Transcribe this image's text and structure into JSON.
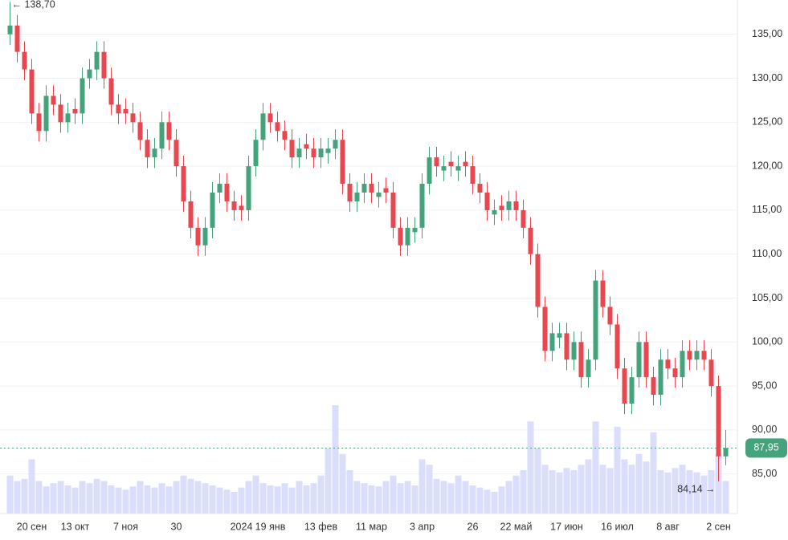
{
  "chart_data": {
    "type": "candlestick",
    "up_color": "#45a37c",
    "down_color": "#e8474f",
    "volume_color": "#dadefb",
    "ylim": [
      80.5,
      138.9
    ],
    "yticks": [
      {
        "value": 85,
        "label": "85,00"
      },
      {
        "value": 90,
        "label": "90,00"
      },
      {
        "value": 95,
        "label": "95,00"
      },
      {
        "value": 100,
        "label": "100,00"
      },
      {
        "value": 105,
        "label": "105,00"
      },
      {
        "value": 110,
        "label": "110,00"
      },
      {
        "value": 115,
        "label": "115,00"
      },
      {
        "value": 120,
        "label": "120,00"
      },
      {
        "value": 125,
        "label": "125,00"
      },
      {
        "value": 130,
        "label": "130,00"
      },
      {
        "value": 135,
        "label": "135,00"
      }
    ],
    "grid": true,
    "last_price": {
      "value": 87.95,
      "label": "87,95"
    },
    "high_marker": {
      "value": 138.7,
      "label": "← 138,70"
    },
    "low_marker": {
      "value": 84.14,
      "label": "84,14 →"
    },
    "categories": [
      null,
      null,
      null,
      "20 сен",
      null,
      null,
      null,
      null,
      null,
      "13 окт",
      null,
      null,
      null,
      null,
      null,
      null,
      "7 ноя",
      null,
      null,
      null,
      null,
      null,
      null,
      "30",
      null,
      null,
      null,
      null,
      null,
      null,
      null,
      null,
      "2024",
      null,
      null,
      null,
      "19 янв",
      null,
      null,
      null,
      null,
      null,
      null,
      "13 фев",
      null,
      null,
      null,
      null,
      null,
      null,
      "11 мар",
      null,
      null,
      null,
      null,
      null,
      null,
      "3 апр",
      null,
      null,
      null,
      null,
      null,
      null,
      "26",
      null,
      null,
      null,
      null,
      null,
      "22 май",
      null,
      null,
      null,
      null,
      null,
      null,
      "17 июн",
      null,
      null,
      null,
      null,
      null,
      null,
      "16 июл",
      null,
      null,
      null,
      null,
      null,
      null,
      "8 авг",
      null,
      null,
      null,
      null,
      null,
      null,
      "2 сен",
      null
    ],
    "open": [
      135,
      136,
      133,
      131,
      126,
      124,
      128,
      127,
      125,
      126.5,
      126,
      130,
      131,
      133,
      130,
      127,
      126.5,
      126,
      125,
      123,
      121,
      122,
      125,
      123,
      120,
      116,
      113,
      111,
      113,
      117,
      118,
      116,
      115.5,
      115,
      120,
      123,
      126,
      125,
      124,
      123,
      121,
      122.5,
      122,
      121,
      121.5,
      122,
      123,
      118,
      116,
      117,
      118,
      116.5,
      117.5,
      117,
      113,
      111,
      112.5,
      113,
      118,
      121,
      119.5,
      120.5,
      119.5,
      120.5,
      120,
      118,
      117,
      114.5,
      115.5,
      115,
      116,
      115,
      113,
      110,
      104,
      99,
      100.5,
      101,
      98,
      100,
      96,
      98,
      107,
      104,
      102,
      97,
      93,
      96,
      100,
      96,
      94,
      98,
      97,
      96,
      99,
      98,
      99,
      98,
      95,
      87
    ],
    "high": [
      138.7,
      137.2,
      134.2,
      132.2,
      127.2,
      129.2,
      129.2,
      128.2,
      127.2,
      127.7,
      131.2,
      132.2,
      134.2,
      134.2,
      131.2,
      128.2,
      127.7,
      127.2,
      126.2,
      124.2,
      123.2,
      126.2,
      126.2,
      124.2,
      121.2,
      117.2,
      114.2,
      114.2,
      118.2,
      119.2,
      119.2,
      117.2,
      116.7,
      121.2,
      124.2,
      127.2,
      127.2,
      126.2,
      125.2,
      124.2,
      123.2,
      123.7,
      123.2,
      123.2,
      123.2,
      124.2,
      124.2,
      119.2,
      118.2,
      119.2,
      119.2,
      118.2,
      118.7,
      118.2,
      114.2,
      114.2,
      114.2,
      119.2,
      122.2,
      122.2,
      121.2,
      121.7,
      121.2,
      121.7,
      121.2,
      119.2,
      118.2,
      116.2,
      116.7,
      117.2,
      117.2,
      116.2,
      114.2,
      111.2,
      105.2,
      102.2,
      102.2,
      102.2,
      101.2,
      101.2,
      99.2,
      108.2,
      108.2,
      105.2,
      103.2,
      98.2,
      97.2,
      101.2,
      101.2,
      97.2,
      99.2,
      99.2,
      98.2,
      100.2,
      100.2,
      100.2,
      100.2,
      99.2,
      96.2,
      90
    ],
    "low": [
      133.8,
      131.8,
      129.8,
      124.8,
      122.8,
      122.8,
      125.8,
      123.8,
      123.8,
      124.8,
      124.8,
      128.8,
      129.8,
      128.8,
      125.8,
      124.8,
      124.8,
      123.8,
      121.8,
      119.8,
      119.8,
      120.8,
      121.8,
      118.8,
      114.8,
      111.8,
      109.8,
      109.8,
      111.8,
      115.8,
      114.8,
      113.8,
      113.8,
      113.8,
      118.8,
      121.8,
      123.8,
      122.8,
      121.8,
      119.8,
      119.8,
      120.8,
      119.8,
      119.8,
      120.3,
      120.8,
      116.8,
      114.8,
      114.8,
      115.8,
      115.8,
      115.3,
      115.8,
      111.8,
      109.8,
      109.8,
      111.3,
      111.8,
      116.8,
      118.8,
      118.3,
      118.8,
      118.3,
      118.8,
      116.8,
      115.8,
      113.8,
      113.3,
      113.8,
      113.8,
      113.8,
      111.8,
      108.8,
      102.8,
      97.8,
      97.8,
      99.3,
      96.8,
      96.8,
      94.8,
      94.8,
      96.8,
      102.8,
      100.8,
      95.8,
      91.8,
      91.8,
      94.8,
      94.8,
      92.8,
      92.8,
      95.8,
      94.8,
      94.8,
      96.8,
      96.8,
      96.8,
      93.8,
      84.14,
      86
    ],
    "close": [
      136,
      133,
      131,
      126,
      124,
      128,
      127,
      125,
      126,
      126,
      130,
      131,
      133,
      130,
      127,
      126,
      126,
      125,
      123,
      121,
      122,
      125,
      123,
      120,
      116,
      113,
      111,
      113,
      117,
      118,
      116,
      115,
      115,
      120,
      123,
      126,
      125,
      124,
      123,
      121,
      122,
      122,
      121,
      122,
      122,
      123,
      118,
      116,
      117,
      118,
      117,
      117,
      117,
      113,
      111,
      113,
      113,
      118,
      121,
      120,
      120,
      120,
      120,
      120,
      118,
      117,
      115,
      115,
      115,
      116,
      115,
      113,
      110,
      104,
      99,
      101,
      101,
      98,
      100,
      96,
      98,
      107,
      104,
      102,
      97,
      93,
      96,
      100,
      96,
      94,
      98,
      97,
      96,
      99,
      98,
      99,
      98,
      95,
      87,
      87.95
    ],
    "volume": [
      35,
      30,
      32,
      50,
      30,
      25,
      28,
      30,
      26,
      24,
      30,
      28,
      32,
      30,
      26,
      24,
      22,
      25,
      30,
      26,
      24,
      28,
      25,
      30,
      35,
      32,
      30,
      28,
      26,
      24,
      22,
      20,
      24,
      30,
      35,
      28,
      26,
      25,
      28,
      24,
      30,
      26,
      28,
      35,
      60,
      100,
      55,
      40,
      30,
      28,
      26,
      25,
      30,
      35,
      28,
      30,
      26,
      50,
      45,
      32,
      30,
      28,
      35,
      30,
      26,
      24,
      22,
      20,
      25,
      30,
      35,
      40,
      85,
      60,
      45,
      40,
      38,
      42,
      40,
      45,
      50,
      85,
      45,
      42,
      80,
      50,
      45,
      55,
      48,
      75,
      40,
      38,
      42,
      45,
      40,
      38,
      35,
      40,
      55,
      30
    ]
  }
}
